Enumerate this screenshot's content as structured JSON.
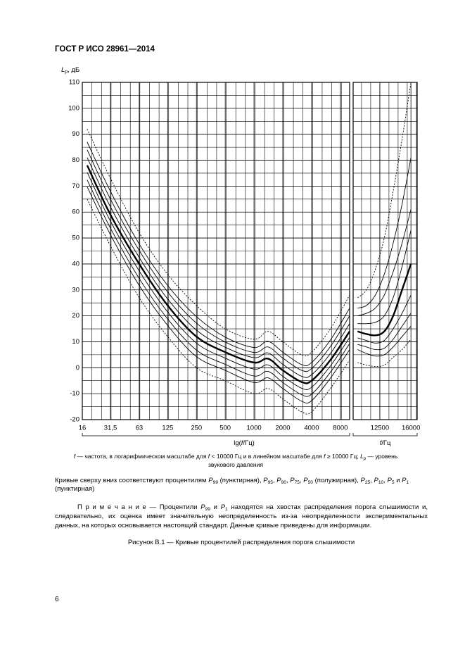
{
  "header": "ГОСТ Р ИСО 28961—2014",
  "chart_data": [
    {
      "type": "line",
      "xscale": "log",
      "grid": true,
      "ylabel": [
        {
          "text": "L",
          "style": "i"
        },
        {
          "text": "p",
          "style": "isub"
        },
        {
          "text": ", дБ"
        }
      ],
      "xlabel": [
        {
          "text": "lg("
        },
        {
          "text": "f",
          "style": "i"
        },
        {
          "text": "/Гц)"
        }
      ],
      "xlim": [
        16,
        10000
      ],
      "ylim": [
        -20,
        110
      ],
      "xticks": [
        16,
        {
          "value": 31.5,
          "label": "31,5"
        },
        63,
        125,
        250,
        500,
        1000,
        2000,
        4000,
        8000
      ],
      "yticks": [
        -20,
        -10,
        0,
        10,
        20,
        30,
        40,
        50,
        60,
        70,
        80,
        90,
        100,
        110
      ],
      "x": [
        18,
        31.5,
        63,
        125,
        250,
        500,
        1000,
        1400,
        2000,
        3150,
        4000,
        6300,
        10000
      ],
      "series": [
        {
          "color": "#000000",
          "style": "dotted",
          "values": [
            92,
            73,
            52,
            36,
            24,
            15,
            11,
            14,
            10,
            5,
            6,
            15,
            28
          ]
        },
        {
          "color": "#000000",
          "style": "normal",
          "values": [
            87,
            68,
            47.7,
            31.7,
            19.7,
            11.8,
            7.8,
            10.2,
            6,
            1.2,
            2,
            10.7,
            23
          ]
        },
        {
          "color": "#000000",
          "style": "normal",
          "values": [
            84,
            65,
            45.2,
            29.2,
            17.2,
            9.9,
            5.9,
            8,
            3.7,
            -1,
            -0.3,
            8.2,
            20
          ]
        },
        {
          "color": "#000000",
          "style": "normal",
          "values": [
            81,
            62,
            42.5,
            26.5,
            14.5,
            7.9,
            3.9,
            5.7,
            1.3,
            -3.3,
            -2.7,
            5.5,
            17
          ]
        },
        {
          "color": "#000000",
          "style": "bold",
          "values": [
            78,
            59,
            40,
            24,
            12,
            6,
            2,
            3.5,
            -1,
            -5.5,
            -5,
            3,
            14
          ]
        },
        {
          "color": "#000000",
          "style": "normal",
          "values": [
            75.3,
            56.5,
            37.3,
            21.5,
            9.5,
            3.7,
            -0.5,
            1.1,
            -3.3,
            -7.9,
            -7.5,
            0.7,
            11.7
          ]
        },
        {
          "color": "#000000",
          "style": "normal",
          "values": [
            72.4,
            53.8,
            34.4,
            18.8,
            6.8,
            1.3,
            -3.2,
            -1.4,
            -5.7,
            -10.4,
            -10.2,
            -1.7,
            9.3
          ]
        },
        {
          "color": "#000000",
          "style": "normal",
          "values": [
            69.7,
            51.3,
            31.7,
            16.3,
            4.3,
            -1,
            -5.7,
            -3.9,
            -8,
            -12.9,
            -12.7,
            -4,
            7
          ]
        },
        {
          "color": "#000000",
          "style": "dotted",
          "values": [
            65,
            47,
            27,
            12,
            0,
            -5,
            -10,
            -8,
            -12,
            -17,
            -17,
            -8,
            3
          ]
        }
      ]
    },
    {
      "type": "line",
      "xscale": "linear",
      "grid": true,
      "xlabel": [
        {
          "text": "f",
          "style": "i"
        },
        {
          "text": "/Гц"
        }
      ],
      "xlim": [
        9500,
        16700
      ],
      "ylim": [
        -20,
        110
      ],
      "xticks": [
        12500,
        16000
      ],
      "x": [
        10000,
        11000,
        12000,
        13000,
        14000,
        15000,
        16000
      ],
      "series": [
        {
          "color": "#000000",
          "style": "dotted",
          "values": [
            27,
            30,
            38,
            50,
            68,
            88,
            110
          ]
        },
        {
          "color": "#000000",
          "style": "normal",
          "values": [
            23,
            24,
            28,
            36,
            48,
            63,
            81
          ]
        },
        {
          "color": "#000000",
          "style": "normal",
          "values": [
            20,
            21,
            23,
            28,
            37,
            48,
            61
          ]
        },
        {
          "color": "#000000",
          "style": "normal",
          "values": [
            17,
            17,
            17.5,
            20,
            27,
            39,
            53
          ]
        },
        {
          "color": "#000000",
          "style": "bold",
          "values": [
            14,
            13,
            12.5,
            14,
            20,
            30,
            40
          ]
        },
        {
          "color": "#000000",
          "style": "normal",
          "values": [
            11.5,
            10.5,
            9.5,
            10.5,
            15,
            21,
            28
          ]
        },
        {
          "color": "#000000",
          "style": "normal",
          "values": [
            9,
            8,
            7,
            7.5,
            11,
            16,
            21
          ]
        },
        {
          "color": "#000000",
          "style": "normal",
          "values": [
            7,
            5.5,
            4.5,
            5,
            8,
            12,
            16
          ]
        },
        {
          "color": "#000000",
          "style": "dotted",
          "values": [
            2,
            1,
            0.5,
            1,
            4,
            7,
            11
          ]
        }
      ]
    }
  ],
  "caption": [
    {
      "text": "f",
      "style": "i"
    },
    {
      "text": " — частота, в логарифмическом масштабе для "
    },
    {
      "text": "f",
      "style": "i"
    },
    {
      "text": " < 10000 Гц и в линейном масштабе для "
    },
    {
      "text": "f",
      "style": "i"
    },
    {
      "text": " ≥ 10000 Гц; "
    },
    {
      "text": "L",
      "style": "i"
    },
    {
      "text": "p",
      "style": "isub"
    },
    {
      "text": " — уровень звукового давления"
    }
  ],
  "curves_note": [
    {
      "text": "Кривые сверху вниз соответствуют процентилям "
    },
    {
      "text": "P",
      "style": "i"
    },
    {
      "text": "99",
      "style": "sub"
    },
    {
      "text": " (пунктирная), "
    },
    {
      "text": "P",
      "style": "i"
    },
    {
      "text": "95",
      "style": "sub"
    },
    {
      "text": ", "
    },
    {
      "text": "P",
      "style": "i"
    },
    {
      "text": "90",
      "style": "sub"
    },
    {
      "text": ", "
    },
    {
      "text": "P",
      "style": "i"
    },
    {
      "text": "75",
      "style": "sub"
    },
    {
      "text": ", "
    },
    {
      "text": "P",
      "style": "i"
    },
    {
      "text": "50",
      "style": "sub"
    },
    {
      "text": " (полужирная), "
    },
    {
      "text": "P",
      "style": "i"
    },
    {
      "text": "25",
      "style": "sub"
    },
    {
      "text": ", "
    },
    {
      "text": "P",
      "style": "i"
    },
    {
      "text": "10",
      "style": "sub"
    },
    {
      "text": ", "
    },
    {
      "text": "P",
      "style": "i"
    },
    {
      "text": "5",
      "style": "sub"
    },
    {
      "text": " и "
    },
    {
      "text": "P",
      "style": "i"
    },
    {
      "text": "1",
      "style": "sub"
    },
    {
      "text": " (пунктирная)"
    }
  ],
  "note": [
    {
      "text": "П р и м е ч а н и е — Процентили "
    },
    {
      "text": "P",
      "style": "i"
    },
    {
      "text": "99",
      "style": "sub"
    },
    {
      "text": " и "
    },
    {
      "text": "P",
      "style": "i"
    },
    {
      "text": "1",
      "style": "sub"
    },
    {
      "text": " находятся на хвостах распределения порога слышимости и, следовательно, их оценка имеет значительную неопределенность из-за неопределенности экспериментальных данных, на которых основывается настоящий стандарт. Данные кривые приведены для информации."
    }
  ],
  "figure_caption": "Рисунок В.1 — Кривые процентилей распределения порога слышимости",
  "page_number": "6"
}
